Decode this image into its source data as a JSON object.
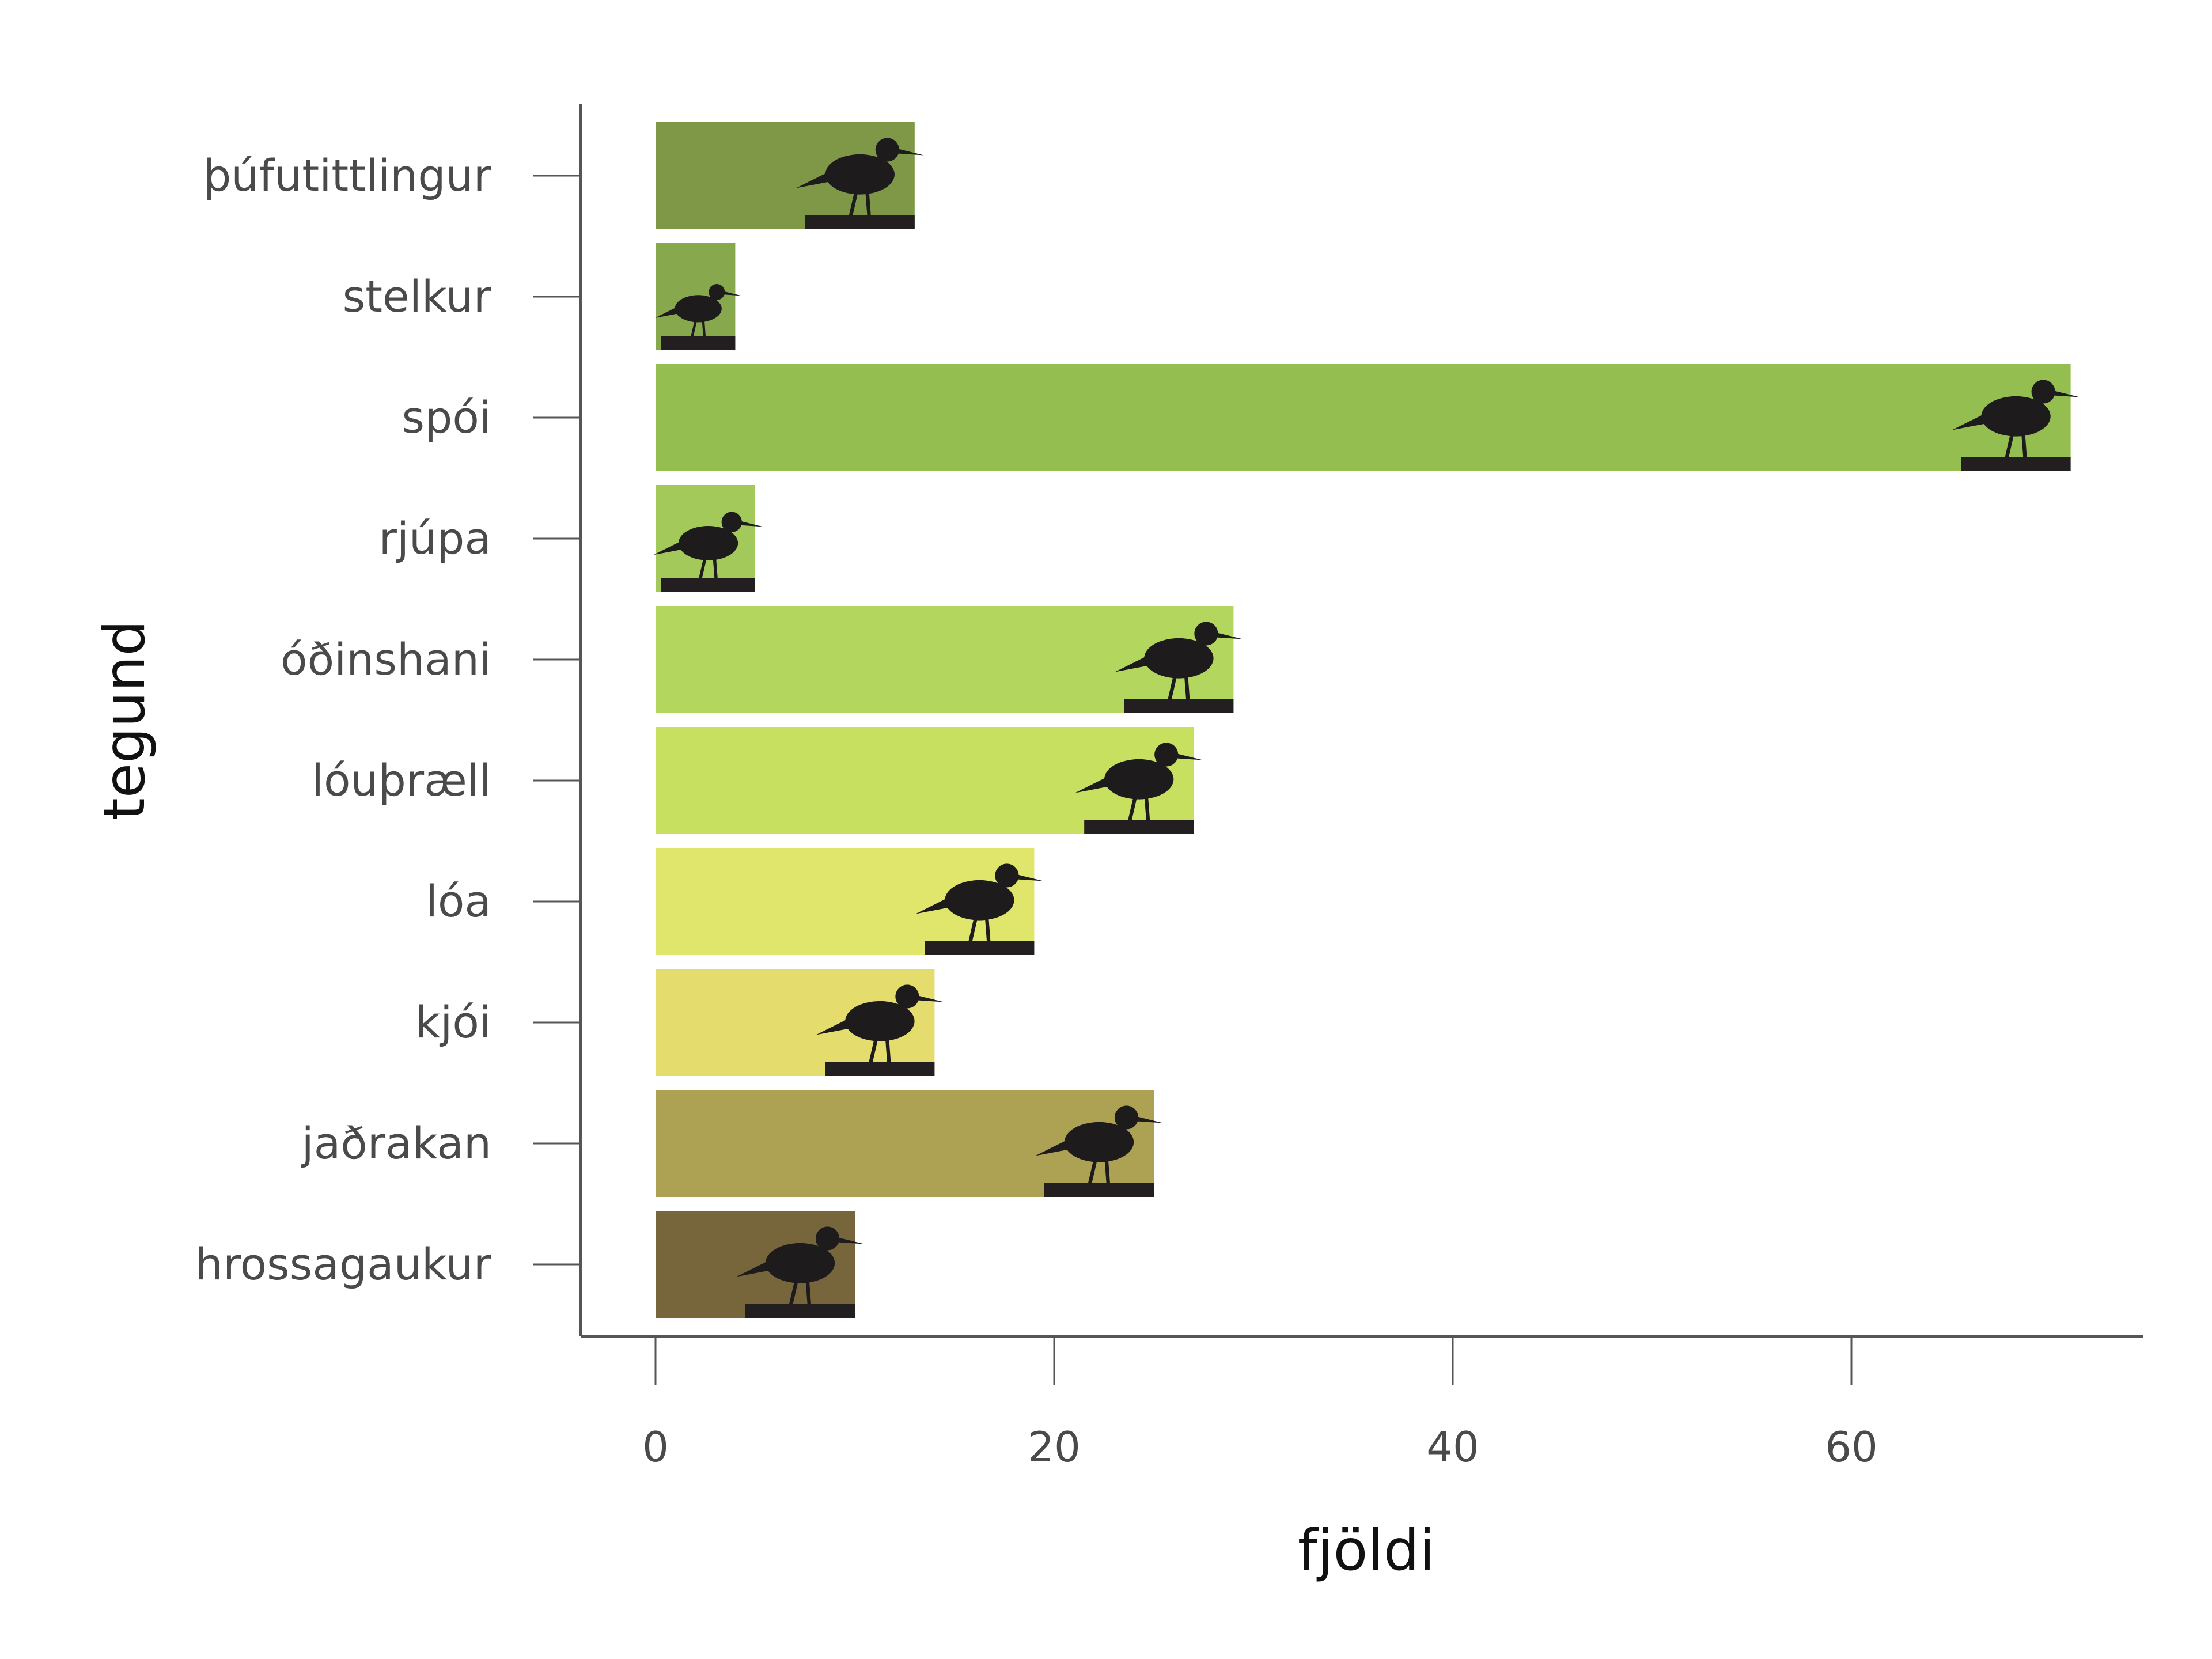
{
  "chart_data": {
    "type": "bar",
    "orientation": "horizontal",
    "xlabel": "fjöldi",
    "ylabel": "tegund",
    "xlim": [
      -3.5,
      74.5
    ],
    "xticks": [
      0,
      20,
      40,
      60
    ],
    "grid": false,
    "legend": "none",
    "categories": [
      "þúfutittlingur",
      "stelkur",
      "spói",
      "rjúpa",
      "óðinshani",
      "lóuþræll",
      "lóa",
      "kjói",
      "jaðrakan",
      "hrossagaukur"
    ],
    "values": [
      13,
      4,
      71,
      5,
      29,
      27,
      19,
      14,
      25,
      10
    ],
    "colors": [
      "#7e9848",
      "#87a84c",
      "#94bf50",
      "#a2c95a",
      "#b3d65e",
      "#c7e060",
      "#e0e66c",
      "#e5dc6e",
      "#ada154",
      "#77653c"
    ],
    "icons": [
      "pipit-silhouette-icon",
      "redshank-silhouette-icon",
      "whimbrel-silhouette-icon",
      "ptarmigan-silhouette-icon",
      "phalarope-silhouette-icon",
      "dunlin-silhouette-icon",
      "plover-silhouette-icon",
      "skua-silhouette-icon",
      "godwit-silhouette-icon",
      "snipe-silhouette-icon"
    ]
  }
}
